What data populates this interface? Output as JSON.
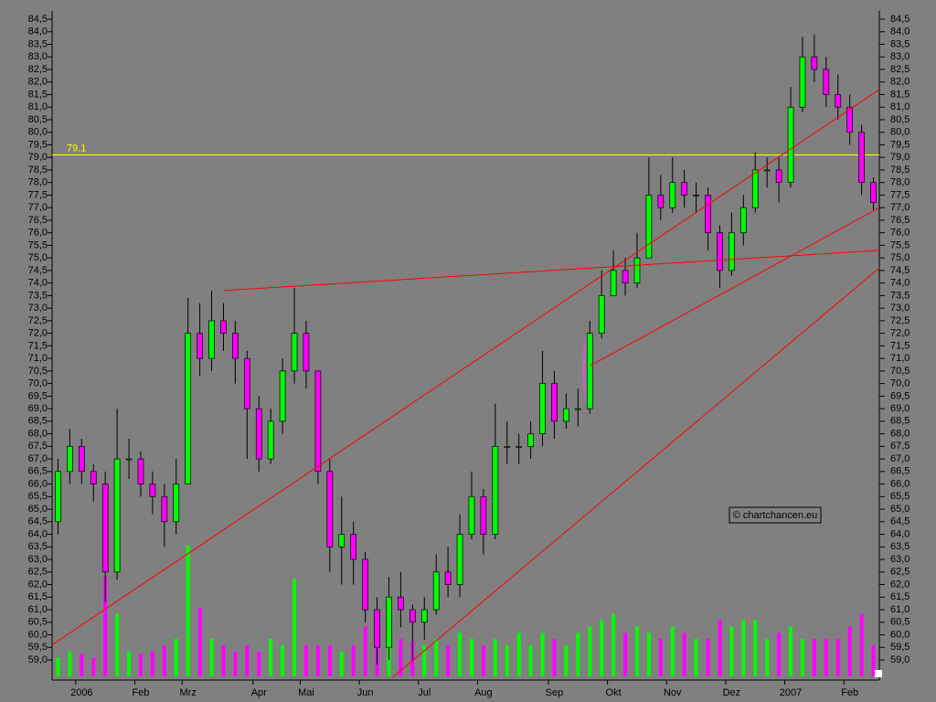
{
  "chart_data": [
    {
      "type": "candlestick",
      "categories": [
        null,
        null,
        "2006",
        null,
        null,
        null,
        null,
        "Feb",
        null,
        null,
        null,
        "Mrz",
        null,
        null,
        null,
        null,
        null,
        "Apr",
        null,
        null,
        null,
        "Mai",
        null,
        null,
        null,
        null,
        "Jun",
        null,
        null,
        null,
        null,
        "Jul",
        null,
        null,
        null,
        null,
        "Aug",
        null,
        null,
        null,
        null,
        null,
        "Sep",
        null,
        null,
        null,
        null,
        "Okt",
        null,
        null,
        null,
        null,
        "Nov",
        null,
        null,
        null,
        null,
        "Dez",
        null,
        null,
        null,
        null,
        "2007",
        null,
        null,
        null,
        null,
        "Feb",
        null,
        null
      ],
      "open": [
        64.5,
        66.5,
        67.5,
        66.5,
        66.0,
        62.5,
        67.0,
        67.0,
        66.0,
        65.5,
        64.5,
        66.0,
        72.0,
        71.0,
        72.5,
        72.0,
        71.0,
        69.0,
        67.0,
        68.5,
        70.5,
        72.0,
        70.5,
        66.5,
        63.5,
        64.0,
        63.0,
        61.0,
        59.5,
        61.5,
        61.0,
        60.5,
        61.0,
        62.5,
        62.0,
        64.0,
        65.5,
        64.0,
        67.5,
        67.5,
        67.5,
        68.0,
        70.0,
        68.5,
        69.0,
        69.0,
        72.0,
        73.5,
        74.5,
        74.0,
        75.0,
        77.5,
        77.0,
        78.0,
        77.5,
        77.5,
        76.0,
        74.5,
        76.0,
        77.0,
        78.5,
        78.5,
        78.0,
        81.0,
        83.0,
        82.5,
        81.5,
        81.0,
        80.0,
        78.0
      ],
      "high": [
        67.0,
        68.2,
        67.8,
        66.8,
        66.5,
        69.0,
        67.8,
        67.3,
        66.5,
        66.0,
        67.0,
        73.4,
        73.2,
        73.7,
        73.2,
        72.5,
        71.3,
        69.5,
        69.0,
        71.0,
        73.8,
        72.5,
        70.5,
        67.0,
        65.5,
        64.5,
        63.3,
        61.5,
        62.3,
        62.5,
        61.2,
        61.5,
        63.2,
        63.5,
        64.8,
        66.5,
        65.8,
        69.2,
        68.5,
        68.0,
        68.5,
        71.3,
        70.5,
        69.6,
        69.8,
        72.5,
        74.5,
        75.3,
        75.0,
        76.0,
        79.0,
        78.3,
        79.0,
        78.5,
        78.0,
        77.8,
        76.3,
        76.8,
        77.5,
        79.2,
        79.0,
        79.0,
        81.8,
        83.8,
        83.9,
        83.0,
        82.3,
        81.5,
        80.3,
        78.2
      ],
      "low": [
        64.0,
        66.0,
        66.0,
        65.3,
        61.3,
        62.2,
        66.2,
        65.5,
        64.8,
        63.5,
        64.0,
        66.0,
        70.3,
        70.5,
        71.3,
        70.0,
        67.0,
        66.5,
        66.8,
        68.0,
        70.0,
        69.8,
        66.0,
        62.5,
        62.0,
        62.0,
        60.5,
        58.8,
        59.0,
        60.3,
        59.0,
        59.8,
        60.8,
        61.5,
        61.5,
        63.8,
        63.2,
        63.8,
        66.8,
        66.8,
        67.0,
        67.5,
        67.8,
        68.2,
        68.3,
        68.8,
        71.8,
        73.5,
        73.5,
        73.8,
        75.0,
        76.5,
        76.8,
        77.0,
        76.8,
        75.3,
        73.8,
        74.3,
        75.5,
        76.8,
        77.8,
        77.2,
        77.8,
        80.8,
        82.0,
        81.0,
        80.5,
        79.5,
        77.5,
        76.9
      ],
      "close": [
        66.5,
        67.5,
        66.5,
        66.0,
        62.5,
        67.0,
        67.0,
        66.0,
        65.5,
        64.5,
        66.0,
        72.0,
        71.0,
        72.5,
        72.0,
        71.0,
        69.0,
        67.0,
        68.5,
        70.5,
        72.0,
        70.5,
        66.5,
        63.5,
        64.0,
        63.0,
        61.0,
        59.5,
        61.5,
        61.0,
        60.5,
        61.0,
        62.5,
        62.0,
        64.0,
        65.5,
        64.0,
        67.5,
        67.5,
        67.5,
        68.0,
        70.0,
        68.5,
        69.0,
        69.0,
        72.0,
        73.5,
        74.5,
        74.0,
        75.0,
        77.5,
        77.0,
        78.0,
        77.5,
        77.5,
        76.0,
        74.5,
        76.0,
        77.0,
        78.5,
        78.5,
        78.0,
        81.0,
        83.0,
        82.5,
        81.5,
        81.0,
        80.0,
        78.0,
        77.2
      ],
      "up_color": "#00ff00",
      "down_color": "#ff00ff",
      "ylim": [
        59.0,
        84.5
      ],
      "yticks": [
        {
          "value": 84.5,
          "label": "84,5"
        },
        {
          "value": 84.0,
          "label": "84,0"
        },
        {
          "value": 83.5,
          "label": "83,5"
        },
        {
          "value": 83.0,
          "label": "83,0"
        },
        {
          "value": 82.5,
          "label": "82,5"
        },
        {
          "value": 82.0,
          "label": "82,0"
        },
        {
          "value": 81.5,
          "label": "81,5"
        },
        {
          "value": 81.0,
          "label": "81,0"
        },
        {
          "value": 80.5,
          "label": "80,5"
        },
        {
          "value": 80.0,
          "label": "80,0"
        },
        {
          "value": 79.5,
          "label": "79,5"
        },
        {
          "value": 79.0,
          "label": "79,0"
        },
        {
          "value": 78.5,
          "label": "78,5"
        },
        {
          "value": 78.0,
          "label": "78,0"
        },
        {
          "value": 77.5,
          "label": "77,5"
        },
        {
          "value": 77.0,
          "label": "77,0"
        },
        {
          "value": 76.5,
          "label": "76,5"
        },
        {
          "value": 76.0,
          "label": "76,0"
        },
        {
          "value": 75.5,
          "label": "75,5"
        },
        {
          "value": 75.0,
          "label": "75,0"
        },
        {
          "value": 74.5,
          "label": "74,5"
        },
        {
          "value": 74.0,
          "label": "74,0"
        },
        {
          "value": 73.5,
          "label": "73,5"
        },
        {
          "value": 73.0,
          "label": "73,0"
        },
        {
          "value": 72.5,
          "label": "72,5"
        },
        {
          "value": 72.0,
          "label": "72,0"
        },
        {
          "value": 71.5,
          "label": "71,5"
        },
        {
          "value": 71.0,
          "label": "71,0"
        },
        {
          "value": 70.5,
          "label": "70,5"
        },
        {
          "value": 70.0,
          "label": "70,0"
        },
        {
          "value": 69.5,
          "label": "69,5"
        },
        {
          "value": 69.0,
          "label": "69,0"
        },
        {
          "value": 68.5,
          "label": "68,5"
        },
        {
          "value": 68.0,
          "label": "68,0"
        },
        {
          "value": 67.5,
          "label": "67,5"
        },
        {
          "value": 67.0,
          "label": "67,0"
        },
        {
          "value": 66.5,
          "label": "66,5"
        },
        {
          "value": 66.0,
          "label": "66,0"
        },
        {
          "value": 65.5,
          "label": "65,5"
        },
        {
          "value": 65.0,
          "label": "65,0"
        },
        {
          "value": 64.5,
          "label": "64,5"
        },
        {
          "value": 64.0,
          "label": "64,0"
        },
        {
          "value": 63.5,
          "label": "63,5"
        },
        {
          "value": 63.0,
          "label": "63,0"
        },
        {
          "value": 62.5,
          "label": "62,5"
        },
        {
          "value": 62.0,
          "label": "62,0"
        },
        {
          "value": 61.5,
          "label": "61,5"
        },
        {
          "value": 61.0,
          "label": "61,0"
        },
        {
          "value": 60.5,
          "label": "60,5"
        },
        {
          "value": 60.0,
          "label": "60,0"
        },
        {
          "value": 59.5,
          "label": "59,5"
        },
        {
          "value": 59.0,
          "label": "59,0"
        }
      ],
      "hline": {
        "value": 79.1,
        "color": "#ffff00"
      },
      "trendlines": {
        "color": "#ff0000",
        "lines": [
          [
            -0.5,
            59.6,
            69.5,
            81.7
          ],
          [
            14.0,
            73.7,
            69.5,
            75.3
          ],
          [
            45.0,
            70.7,
            69.5,
            77.0
          ],
          [
            28.3,
            58.3,
            69.5,
            74.6
          ]
        ]
      },
      "watermark": "© chartchancen.eu"
    },
    {
      "type": "bar",
      "values": [
        15,
        20,
        18,
        15,
        80,
        50,
        20,
        18,
        20,
        25,
        30,
        105,
        55,
        30,
        25,
        20,
        25,
        20,
        30,
        25,
        78,
        25,
        25,
        25,
        20,
        25,
        40,
        25,
        35,
        30,
        28,
        25,
        30,
        25,
        35,
        30,
        25,
        30,
        25,
        35,
        25,
        35,
        30,
        25,
        35,
        40,
        45,
        50,
        35,
        40,
        35,
        30,
        40,
        35,
        30,
        30,
        45,
        40,
        45,
        45,
        30,
        35,
        40,
        30,
        30,
        30,
        30,
        40,
        50,
        25
      ],
      "ylim": [
        0,
        110
      ]
    }
  ]
}
